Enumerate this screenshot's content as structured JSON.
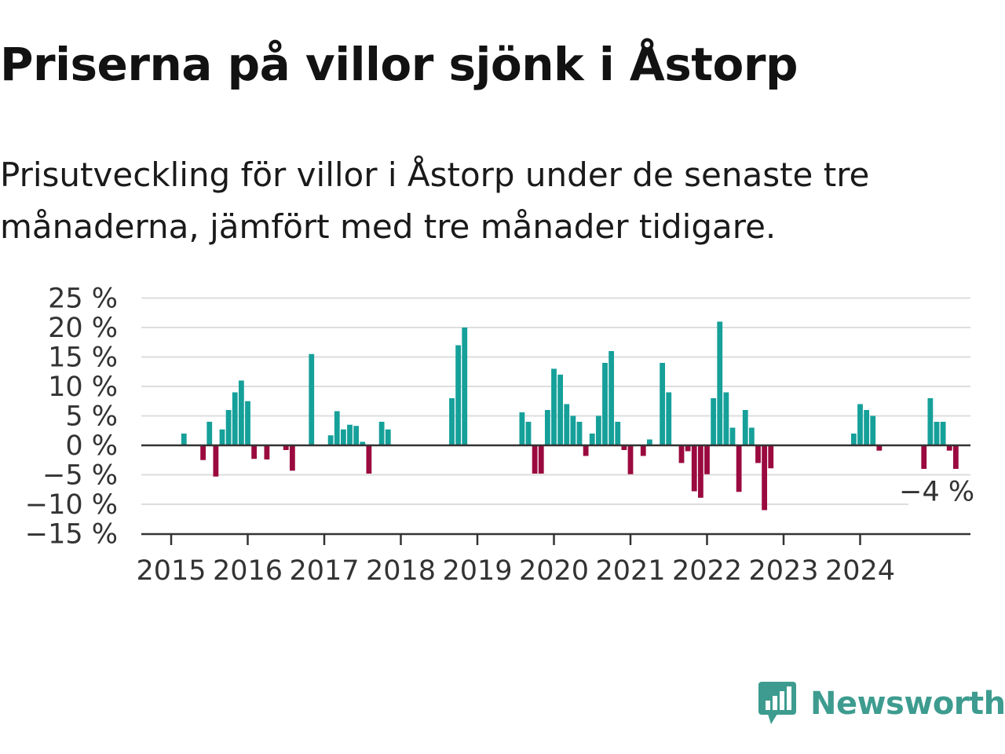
{
  "title": "Priserna på villor sjönk i Åstorp",
  "subtitle": "Prisutveckling för villor i Åstorp under de senaste tre månaderna, jämfört med tre månader tidigare.",
  "brand": {
    "name": "Newsworthy",
    "icon": "newsworthy-logo-icon",
    "color": "#3d9c8f"
  },
  "colors": {
    "positive": "#16a09a",
    "negative": "#9b0a3f",
    "grid": "#dddddd",
    "axis": "#333333"
  },
  "chart_data": {
    "type": "bar",
    "y_ticks": [
      25,
      20,
      15,
      10,
      5,
      0,
      -5,
      -10,
      -15
    ],
    "y_tick_labels": [
      "25 %",
      "20 %",
      "15 %",
      "10 %",
      "5 %",
      "0 %",
      "−5 %",
      "−10 %",
      "−15 %"
    ],
    "ylim": [
      -15,
      25
    ],
    "x_ticks": [
      "2015",
      "2016",
      "2017",
      "2018",
      "2019",
      "2020",
      "2021",
      "2022",
      "2023",
      "2024"
    ],
    "x_start": "2015-01",
    "x_end": "2025-12",
    "grid": true,
    "annotation": {
      "text": "−4 %",
      "month": "2025-02"
    },
    "values": [
      [
        "2015-03",
        2
      ],
      [
        "2015-06",
        -2.5
      ],
      [
        "2015-07",
        4
      ],
      [
        "2015-08",
        -5.3
      ],
      [
        "2015-09",
        2.7
      ],
      [
        "2015-10",
        6
      ],
      [
        "2015-11",
        9
      ],
      [
        "2015-12",
        11
      ],
      [
        "2016-01",
        7.5
      ],
      [
        "2016-02",
        -2.3
      ],
      [
        "2016-04",
        -2.4
      ],
      [
        "2016-07",
        -0.8
      ],
      [
        "2016-08",
        -4.3
      ],
      [
        "2016-11",
        15.5
      ],
      [
        "2017-02",
        1.7
      ],
      [
        "2017-03",
        5.8
      ],
      [
        "2017-04",
        2.7
      ],
      [
        "2017-05",
        3.5
      ],
      [
        "2017-06",
        3.3
      ],
      [
        "2017-07",
        0.6
      ],
      [
        "2017-08",
        -4.8
      ],
      [
        "2017-10",
        4
      ],
      [
        "2017-11",
        2.7
      ],
      [
        "2018-09",
        8
      ],
      [
        "2018-10",
        17
      ],
      [
        "2018-11",
        20
      ],
      [
        "2019-08",
        5.6
      ],
      [
        "2019-09",
        4
      ],
      [
        "2019-10",
        -4.8
      ],
      [
        "2019-11",
        -4.8
      ],
      [
        "2019-12",
        6
      ],
      [
        "2020-01",
        13
      ],
      [
        "2020-02",
        12
      ],
      [
        "2020-03",
        7
      ],
      [
        "2020-04",
        5
      ],
      [
        "2020-05",
        4
      ],
      [
        "2020-06",
        -1.8
      ],
      [
        "2020-07",
        2
      ],
      [
        "2020-08",
        5
      ],
      [
        "2020-09",
        14
      ],
      [
        "2020-10",
        16
      ],
      [
        "2020-11",
        4
      ],
      [
        "2020-12",
        -0.8
      ],
      [
        "2021-01",
        -4.9
      ],
      [
        "2021-03",
        -1.8
      ],
      [
        "2021-04",
        1
      ],
      [
        "2021-06",
        14
      ],
      [
        "2021-07",
        9
      ],
      [
        "2021-09",
        -3
      ],
      [
        "2021-10",
        -1
      ],
      [
        "2021-11",
        -7.8
      ],
      [
        "2021-12",
        -8.9
      ],
      [
        "2022-01",
        -4.9
      ],
      [
        "2022-02",
        8
      ],
      [
        "2022-03",
        21
      ],
      [
        "2022-04",
        9
      ],
      [
        "2022-05",
        3
      ],
      [
        "2022-06",
        -7.9
      ],
      [
        "2022-07",
        6
      ],
      [
        "2022-08",
        3
      ],
      [
        "2022-09",
        -3
      ],
      [
        "2022-10",
        -11
      ],
      [
        "2022-11",
        -3.9
      ],
      [
        "2023-12",
        2
      ],
      [
        "2024-01",
        7
      ],
      [
        "2024-02",
        6
      ],
      [
        "2024-03",
        5
      ],
      [
        "2024-04",
        -0.9
      ],
      [
        "2024-11",
        -4
      ],
      [
        "2024-12",
        8
      ],
      [
        "2025-01",
        4
      ],
      [
        "2025-02",
        4
      ],
      [
        "2025-03",
        -0.9
      ],
      [
        "2025-04",
        -4
      ]
    ]
  }
}
